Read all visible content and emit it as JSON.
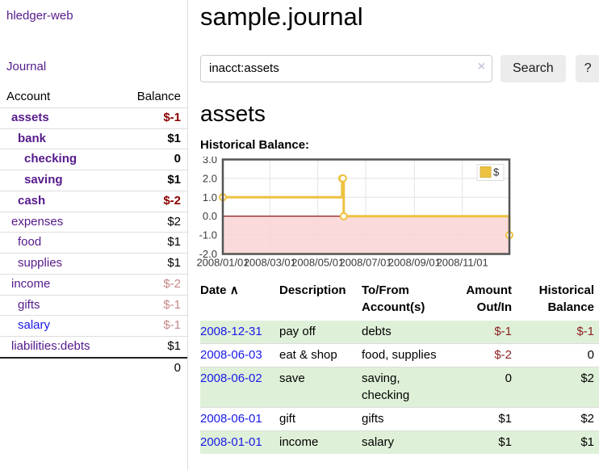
{
  "app": {
    "title": "hledger-web"
  },
  "colors": {
    "link_purple": "#551a8b",
    "link_blue": "#1a1ae8",
    "negative_strong": "#8b0000",
    "negative_soft": "#c58888",
    "table_negative": "#8b2222",
    "row_stripe_green": "#dff0d8",
    "chart_line": "#edc240"
  },
  "sidebar": {
    "journal_link": "Journal",
    "table": {
      "account_header": "Account",
      "balance_header": "Balance",
      "total": "0"
    },
    "accounts": [
      {
        "name": "assets",
        "balance": "$-1",
        "depth": 1,
        "current": true,
        "balance_tone": "negative"
      },
      {
        "name": "bank",
        "balance": "$1",
        "depth": 2,
        "current": true,
        "balance_tone": "normal"
      },
      {
        "name": "checking",
        "balance": "0",
        "depth": 3,
        "current": true,
        "balance_tone": "normal"
      },
      {
        "name": "saving",
        "balance": "$1",
        "depth": 3,
        "current": true,
        "balance_tone": "normal"
      },
      {
        "name": "cash",
        "balance": "$-2",
        "depth": 2,
        "current": true,
        "balance_tone": "negative"
      },
      {
        "name": "expenses",
        "balance": "$2",
        "depth": 1,
        "current": false,
        "balance_tone": "normal"
      },
      {
        "name": "food",
        "balance": "$1",
        "depth": 2,
        "current": false,
        "balance_tone": "normal"
      },
      {
        "name": "supplies",
        "balance": "$1",
        "depth": 2,
        "current": false,
        "balance_tone": "normal"
      },
      {
        "name": "income",
        "balance": "$-2",
        "depth": 1,
        "current": false,
        "balance_tone": "negative-soft"
      },
      {
        "name": "gifts",
        "balance": "$-1",
        "depth": 2,
        "current": false,
        "balance_tone": "negative-soft"
      },
      {
        "name": "salary",
        "balance": "$-1",
        "depth": 2,
        "current": false,
        "balance_tone": "negative-soft",
        "link_tone": "blue"
      },
      {
        "name": "liabilities:debts",
        "balance": "$1",
        "depth": 1,
        "current": false,
        "balance_tone": "normal"
      }
    ]
  },
  "main": {
    "title": "sample.journal",
    "search": {
      "value": "inacct:assets",
      "clear_icon": "×",
      "button_label": "Search",
      "help_label": "?"
    },
    "account_heading": "assets",
    "chart_label": "Historical Balance:"
  },
  "chart_data": {
    "type": "line",
    "step": true,
    "title": "Historical Balance",
    "series": [
      {
        "name": "$",
        "color": "#edc240",
        "points": [
          [
            "2008-01-01",
            1
          ],
          [
            "2008-06-01",
            2
          ],
          [
            "2008-06-02",
            2
          ],
          [
            "2008-06-03",
            0
          ],
          [
            "2008-12-31",
            -1
          ]
        ]
      }
    ],
    "x_range": [
      "2008-01-01",
      "2008-12-31"
    ],
    "ylim": [
      -2,
      3
    ],
    "y_ticks": [
      "3.0",
      "2.0",
      "1.0",
      "0.0",
      "-1.0",
      "-2.0"
    ],
    "x_ticks": [
      "2008/01/01",
      "2008/03/01",
      "2008/05/01",
      "2008/07/01",
      "2008/09/01",
      "2008/11/01"
    ],
    "grid": true,
    "legend": {
      "label": "$",
      "position": "top-right"
    },
    "negative_region_color": "#f9d4d4",
    "zero_line_color": "#800000"
  },
  "register": {
    "headers": {
      "date": "Date",
      "sort_indicator": "∧",
      "description": "Description",
      "accounts": "To/From Account(s)",
      "amount": "Amount Out/In",
      "balance": "Historical Balance"
    },
    "rows": [
      {
        "date": "2008-12-31",
        "description": "pay off",
        "accounts": "debts",
        "amount": "$-1",
        "balance": "$-1",
        "amount_negative": true,
        "balance_negative": true,
        "shaded": true
      },
      {
        "date": "2008-06-03",
        "description": "eat & shop",
        "accounts": "food, supplies",
        "amount": "$-2",
        "balance": "0",
        "amount_negative": true,
        "balance_negative": false,
        "shaded": false
      },
      {
        "date": "2008-06-02",
        "description": "save",
        "accounts": "saving, checking",
        "amount": "0",
        "balance": "$2",
        "amount_negative": false,
        "balance_negative": false,
        "shaded": true
      },
      {
        "date": "2008-06-01",
        "description": "gift",
        "accounts": "gifts",
        "amount": "$1",
        "balance": "$2",
        "amount_negative": false,
        "balance_negative": false,
        "shaded": false
      },
      {
        "date": "2008-01-01",
        "description": "income",
        "accounts": "salary",
        "amount": "$1",
        "balance": "$1",
        "amount_negative": false,
        "balance_negative": false,
        "shaded": true
      }
    ]
  }
}
